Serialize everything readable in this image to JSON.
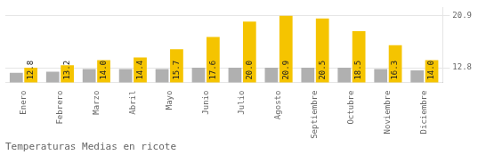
{
  "chart_data": {
    "type": "bar",
    "title": "Temperaturas Medias en ricote",
    "categories": [
      "Enero",
      "Febrero",
      "Marzo",
      "Abril",
      "Mayo",
      "Junio",
      "Julio",
      "Agosto",
      "Septiembre",
      "Octubre",
      "Noviembre",
      "Diciembre"
    ],
    "series": [
      {
        "color": "#B0B0B0",
        "values": [
          12.0,
          12.2,
          12.6,
          12.6,
          12.6,
          12.8,
          12.8,
          12.8,
          12.8,
          12.8,
          12.6,
          12.4
        ]
      },
      {
        "color": "#F5C400",
        "values": [
          12.8,
          13.2,
          14.0,
          14.4,
          15.7,
          17.6,
          20.0,
          20.9,
          20.5,
          18.5,
          16.3,
          14.0
        ],
        "value_labels": [
          "12.8",
          "13.2",
          "14.0",
          "14.4",
          "15.7",
          "17.6",
          "20.0",
          "20.9",
          "20.5",
          "18.5",
          "16.3",
          "14.0"
        ],
        "data_labels": true
      }
    ],
    "ylim": [
      10.5,
      22.2
    ],
    "yticks": [
      12.8,
      20.9
    ],
    "grid": true
  }
}
